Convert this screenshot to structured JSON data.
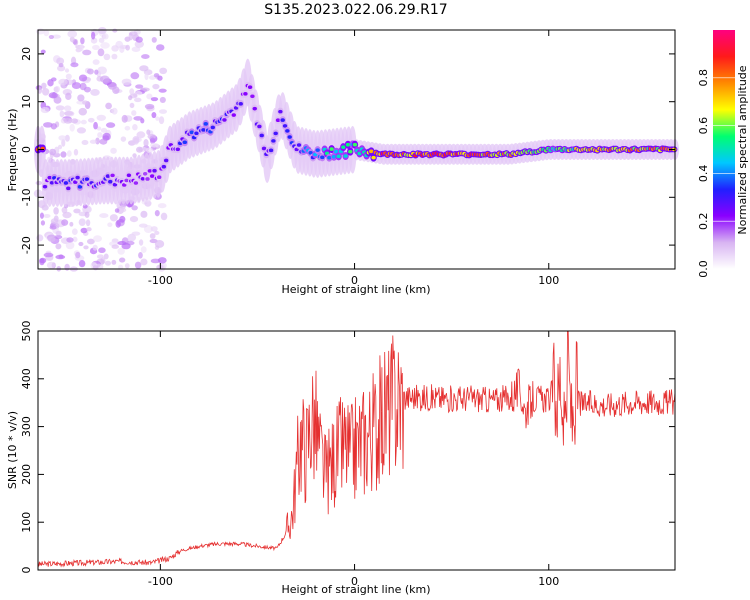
{
  "title": "S135.2023.022.06.29.R17",
  "colors": {
    "snr_line": "#e53030",
    "colormap": [
      "#ffffff",
      "#d8b4f2",
      "#8a00ff",
      "#2020ff",
      "#00c8ff",
      "#00ff70",
      "#ffff00",
      "#ff8a00",
      "#ff1a1a",
      "#ff007f"
    ]
  },
  "chart_data": [
    {
      "type": "heatmap",
      "title": "S135.2023.022.06.29.R17",
      "xlabel": "Height of straight line (km)",
      "ylabel": "Frequency (Hz)",
      "xlim": [
        -163,
        165
      ],
      "ylim": [
        -25,
        25
      ],
      "x_ticks": [
        -100,
        0,
        100
      ],
      "y_ticks": [
        -20,
        -10,
        0,
        10,
        20
      ],
      "colorbar": {
        "label": "Normalized spectral amplitude",
        "range": [
          0.0,
          1.0
        ],
        "ticks": [
          "0.0",
          "0.2",
          "0.4",
          "0.6",
          "0.8"
        ]
      },
      "ridge": [
        {
          "x": -160,
          "y": -7,
          "amp": 0.3
        },
        {
          "x": -145,
          "y": -7,
          "amp": 0.35
        },
        {
          "x": -130,
          "y": -6.5,
          "amp": 0.3
        },
        {
          "x": -115,
          "y": -6.5,
          "amp": 0.25
        },
        {
          "x": -100,
          "y": -5,
          "amp": 0.25
        },
        {
          "x": -95,
          "y": 0,
          "amp": 0.3
        },
        {
          "x": -85,
          "y": 3,
          "amp": 0.35
        },
        {
          "x": -72,
          "y": 5,
          "amp": 0.35
        },
        {
          "x": -60,
          "y": 9,
          "amp": 0.3
        },
        {
          "x": -55,
          "y": 14,
          "amp": 0.25
        },
        {
          "x": -45,
          "y": -2,
          "amp": 0.3
        },
        {
          "x": -38,
          "y": 8,
          "amp": 0.3
        },
        {
          "x": -30,
          "y": 0,
          "amp": 0.35
        },
        {
          "x": -20,
          "y": -1,
          "amp": 0.45
        },
        {
          "x": -10,
          "y": -0.5,
          "amp": 0.6
        },
        {
          "x": 0,
          "y": 0,
          "amp": 0.55
        },
        {
          "x": 15,
          "y": -1,
          "amp": 0.9
        },
        {
          "x": 50,
          "y": -1,
          "amp": 0.9
        },
        {
          "x": 80,
          "y": -1,
          "amp": 0.85
        },
        {
          "x": 100,
          "y": 0,
          "amp": 0.6
        },
        {
          "x": 130,
          "y": 0,
          "amp": 0.8
        },
        {
          "x": 165,
          "y": 0,
          "amp": 0.8
        }
      ]
    },
    {
      "type": "line",
      "xlabel": "Height of straight line (km)",
      "ylabel": "SNR (10 * v/v)",
      "xlim": [
        -163,
        165
      ],
      "ylim": [
        0,
        500
      ],
      "x_ticks": [
        -100,
        0,
        100
      ],
      "y_ticks": [
        0,
        100,
        200,
        300,
        400,
        500
      ],
      "series": [
        {
          "x": [
            -163,
            -140,
            -120,
            -105,
            -95,
            -90,
            -80,
            -70,
            -60,
            -50,
            -40,
            -35,
            -32,
            -30,
            -28,
            -25,
            -22,
            -20,
            -18,
            -15,
            -12,
            -10,
            -8,
            -5,
            -2,
            0,
            3,
            6,
            8,
            10,
            13,
            16,
            18,
            20,
            25,
            30,
            40,
            50,
            60,
            70,
            80,
            85,
            88,
            90,
            95,
            100,
            103,
            105,
            106,
            108,
            110,
            112,
            114,
            116,
            118,
            120,
            130,
            140,
            150,
            165
          ],
          "y": [
            12,
            15,
            18,
            15,
            25,
            40,
            50,
            55,
            55,
            50,
            45,
            80,
            120,
            200,
            280,
            250,
            320,
            300,
            250,
            200,
            220,
            240,
            250,
            260,
            240,
            255,
            270,
            280,
            290,
            295,
            310,
            330,
            340,
            350,
            360,
            362,
            360,
            358,
            360,
            355,
            360,
            380,
            330,
            350,
            360,
            355,
            380,
            350,
            420,
            280,
            430,
            300,
            380,
            350,
            345,
            348,
            345,
            350,
            352,
            350
          ]
        }
      ]
    }
  ]
}
